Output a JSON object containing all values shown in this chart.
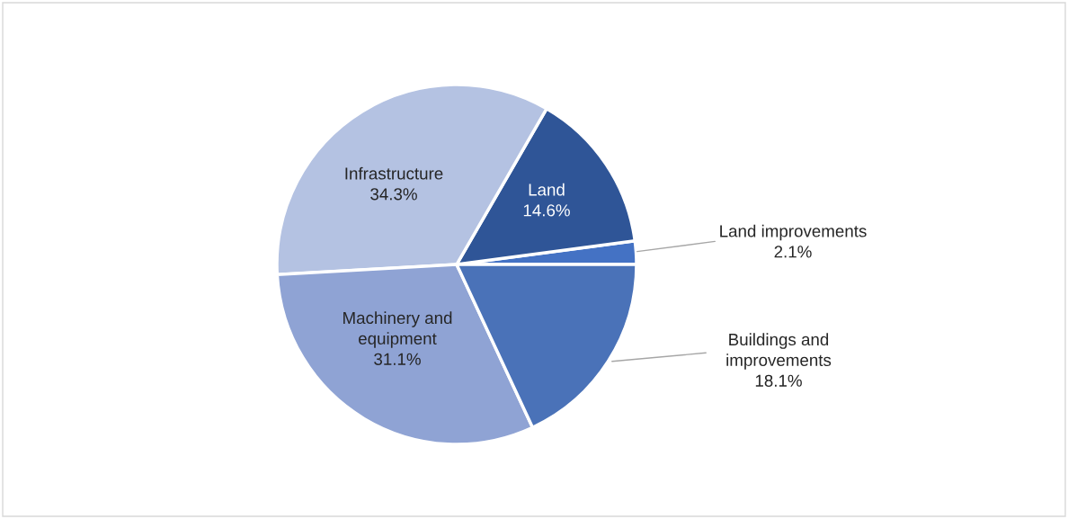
{
  "chart_data": {
    "type": "pie",
    "categories": [
      "Land improvements",
      "Land",
      "Infrastructure",
      "Machinery and equipment",
      "Buildings and improvements"
    ],
    "values": [
      2.1,
      14.6,
      34.3,
      31.1,
      18.1
    ],
    "value_labels": [
      "2.1%",
      "14.6%",
      "34.3%",
      "31.1%",
      "18.1%"
    ],
    "colors": [
      "#4472c4",
      "#2f5597",
      "#b4c2e2",
      "#8fa3d4",
      "#4a72b8"
    ],
    "legend": false
  }
}
